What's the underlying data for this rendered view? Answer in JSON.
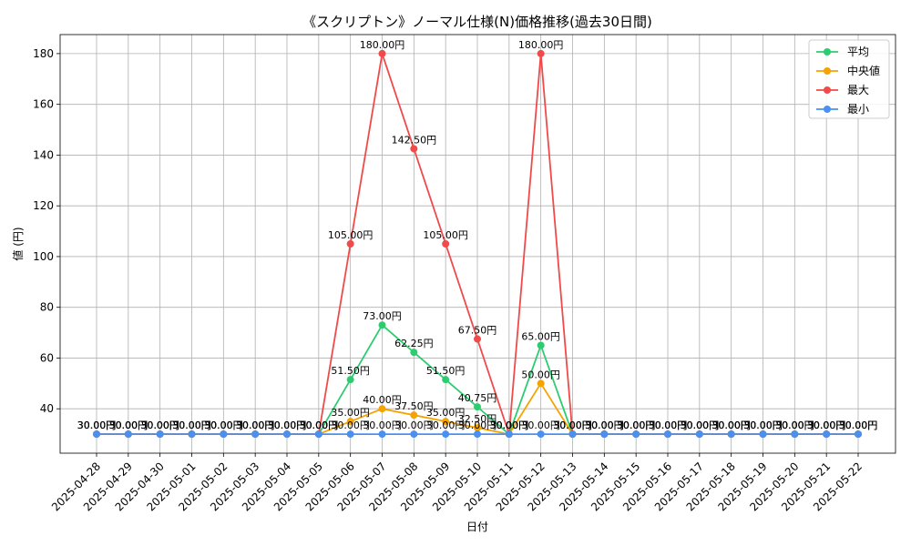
{
  "chart_data": {
    "type": "line",
    "title": "《スクリプトン》ノーマル仕様(N)価格推移(過去30日間)",
    "xlabel": "日付",
    "ylabel": "値 (円)",
    "ylim": [
      22.5,
      187.5
    ],
    "yticks": [
      40,
      60,
      80,
      100,
      120,
      140,
      160,
      180
    ],
    "grid": true,
    "legend_position": "top-right",
    "value_suffix": "円",
    "categories": [
      "2025-04-28",
      "2025-04-29",
      "2025-04-30",
      "2025-05-01",
      "2025-05-02",
      "2025-05-03",
      "2025-05-04",
      "2025-05-05",
      "2025-05-06",
      "2025-05-07",
      "2025-05-08",
      "2025-05-09",
      "2025-05-10",
      "2025-05-11",
      "2025-05-12",
      "2025-05-13",
      "2025-05-14",
      "2025-05-15",
      "2025-05-16",
      "2025-05-17",
      "2025-05-18",
      "2025-05-19",
      "2025-05-20",
      "2025-05-21",
      "2025-05-22"
    ],
    "series": [
      {
        "name": "平均",
        "color": "#2ecc71",
        "values": [
          30,
          30,
          30,
          30,
          30,
          30,
          30,
          30,
          51.5,
          73,
          62.25,
          51.5,
          40.75,
          30,
          65,
          30,
          30,
          30,
          30,
          30,
          30,
          30,
          30,
          30,
          30
        ]
      },
      {
        "name": "中央値",
        "color": "#f5a300",
        "values": [
          30,
          30,
          30,
          30,
          30,
          30,
          30,
          30,
          35,
          40,
          37.5,
          35,
          32.5,
          30,
          50,
          30,
          30,
          30,
          30,
          30,
          30,
          30,
          30,
          30,
          30
        ]
      },
      {
        "name": "最大",
        "color": "#f04a4a",
        "values": [
          30,
          30,
          30,
          30,
          30,
          30,
          30,
          30,
          105,
          180,
          142.5,
          105,
          67.5,
          30,
          180,
          30,
          30,
          30,
          30,
          30,
          30,
          30,
          30,
          30,
          30
        ]
      },
      {
        "name": "最小",
        "color": "#4a90f0",
        "values": [
          30,
          30,
          30,
          30,
          30,
          30,
          30,
          30,
          30,
          30,
          30,
          30,
          30,
          30,
          30,
          30,
          30,
          30,
          30,
          30,
          30,
          30,
          30,
          30,
          30
        ]
      }
    ]
  }
}
